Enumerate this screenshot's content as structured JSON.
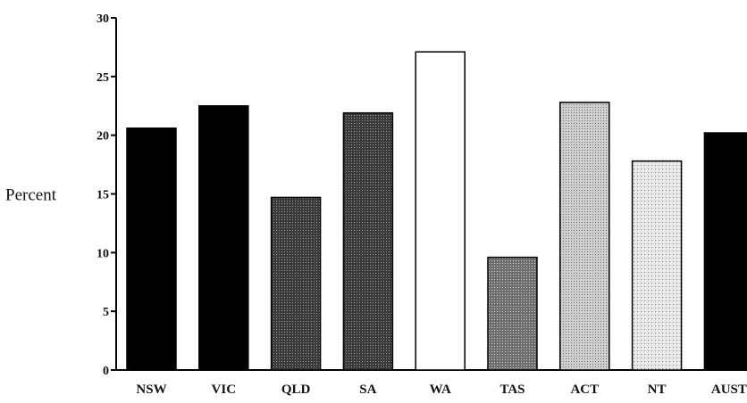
{
  "chart_data": {
    "type": "bar",
    "title": "",
    "xlabel": "",
    "ylabel": "Percent",
    "ylim": [
      0,
      30
    ],
    "yticks": [
      0,
      5,
      10,
      15,
      20,
      25,
      30
    ],
    "grid": false,
    "legend": "none",
    "categories": [
      "NSW",
      "VIC",
      "QLD",
      "SA",
      "WA",
      "TAS",
      "ACT",
      "NT",
      "AUST"
    ],
    "values": [
      20.6,
      22.5,
      14.7,
      21.9,
      27.1,
      9.6,
      22.8,
      17.8,
      20.2
    ],
    "fills": [
      "black",
      "black",
      "dark-dots",
      "dark-dots",
      "white",
      "medium-dots",
      "light-dots",
      "lighter-dots",
      "black"
    ]
  }
}
